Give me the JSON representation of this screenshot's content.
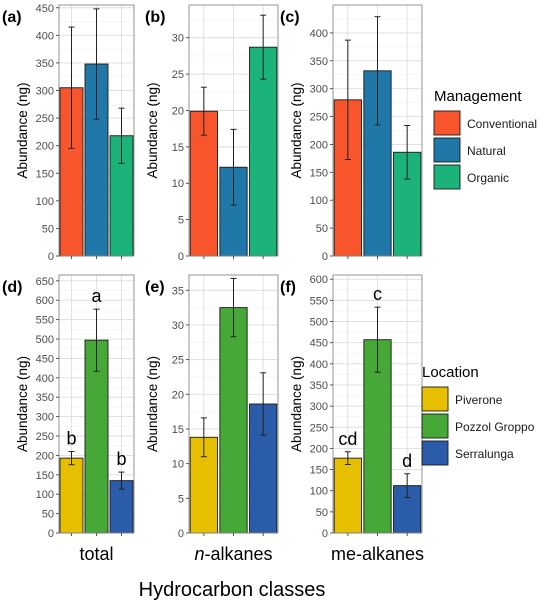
{
  "figure": {
    "xlabel": "Hydrocarbon classes",
    "ylabel": "Abundance (ng)",
    "legends": [
      {
        "title": "Management",
        "entries": [
          {
            "label": "Conventional",
            "color": "#f8552c"
          },
          {
            "label": "Natural",
            "color": "#1f78a8"
          },
          {
            "label": "Organic",
            "color": "#1bb37a"
          }
        ]
      },
      {
        "title": "Location",
        "entries": [
          {
            "label": "Piverone",
            "color": "#e6bf00"
          },
          {
            "label": "Pozzol Groppo",
            "color": "#46a836"
          },
          {
            "label": "Serralunga",
            "color": "#2a5caa"
          }
        ]
      }
    ]
  },
  "chart_data": [
    {
      "type": "bar",
      "panel_label": "(a)",
      "group": "Management",
      "categories": [
        "Conventional",
        "Natural",
        "Organic"
      ],
      "values": [
        305,
        348,
        218
      ],
      "errors": [
        110,
        100,
        50
      ],
      "ylim": [
        0,
        455
      ],
      "yticks": [
        0,
        50,
        100,
        150,
        200,
        250,
        300,
        350,
        400,
        450
      ],
      "grid": true,
      "letters": [],
      "xtick": ""
    },
    {
      "type": "bar",
      "panel_label": "(b)",
      "group": "Management",
      "categories": [
        "Conventional",
        "Natural",
        "Organic"
      ],
      "values": [
        19.9,
        12.2,
        28.7
      ],
      "errors": [
        3.3,
        5.2,
        4.4
      ],
      "ylim": [
        0,
        34.5
      ],
      "yticks": [
        0,
        5,
        10,
        15,
        20,
        25,
        30
      ],
      "grid": true,
      "letters": [],
      "xtick": ""
    },
    {
      "type": "bar",
      "panel_label": "(c)",
      "group": "Management",
      "categories": [
        "Conventional",
        "Natural",
        "Organic"
      ],
      "values": [
        280,
        332,
        186
      ],
      "errors": [
        107,
        97,
        48
      ],
      "ylim": [
        0,
        450
      ],
      "yticks": [
        0,
        50,
        100,
        150,
        200,
        250,
        300,
        350,
        400
      ],
      "grid": true,
      "letters": [],
      "xtick": ""
    },
    {
      "type": "bar",
      "panel_label": "(d)",
      "group": "Location",
      "categories": [
        "Piverone",
        "Pozzol Groppo",
        "Serralunga"
      ],
      "values": [
        193,
        497,
        135
      ],
      "errors": [
        17,
        80,
        22
      ],
      "ylim": [
        0,
        665
      ],
      "yticks": [
        0,
        50,
        100,
        150,
        200,
        250,
        300,
        350,
        400,
        450,
        500,
        550,
        600,
        650
      ],
      "grid": true,
      "letters": [
        "b",
        "a",
        "b"
      ],
      "xtick": "total"
    },
    {
      "type": "bar",
      "panel_label": "(e)",
      "group": "Location",
      "categories": [
        "Piverone",
        "Pozzol Groppo",
        "Serralunga"
      ],
      "values": [
        13.8,
        32.5,
        18.6
      ],
      "errors": [
        2.8,
        4.2,
        4.5
      ],
      "ylim": [
        0,
        37.2
      ],
      "yticks": [
        0,
        5,
        10,
        15,
        20,
        25,
        30,
        35
      ],
      "grid": true,
      "letters": [],
      "xtick_italic": "n",
      "xtick": "-alkanes"
    },
    {
      "type": "bar",
      "panel_label": "(f)",
      "group": "Location",
      "categories": [
        "Piverone",
        "Pozzol Groppo",
        "Serralunga"
      ],
      "values": [
        177,
        457,
        112
      ],
      "errors": [
        15,
        77,
        28
      ],
      "ylim": [
        0,
        610
      ],
      "yticks": [
        0,
        50,
        100,
        150,
        200,
        250,
        300,
        350,
        400,
        450,
        500,
        550,
        600
      ],
      "grid": true,
      "letters": [
        "cd",
        "c",
        "d"
      ],
      "xtick": "me-alkanes"
    }
  ]
}
